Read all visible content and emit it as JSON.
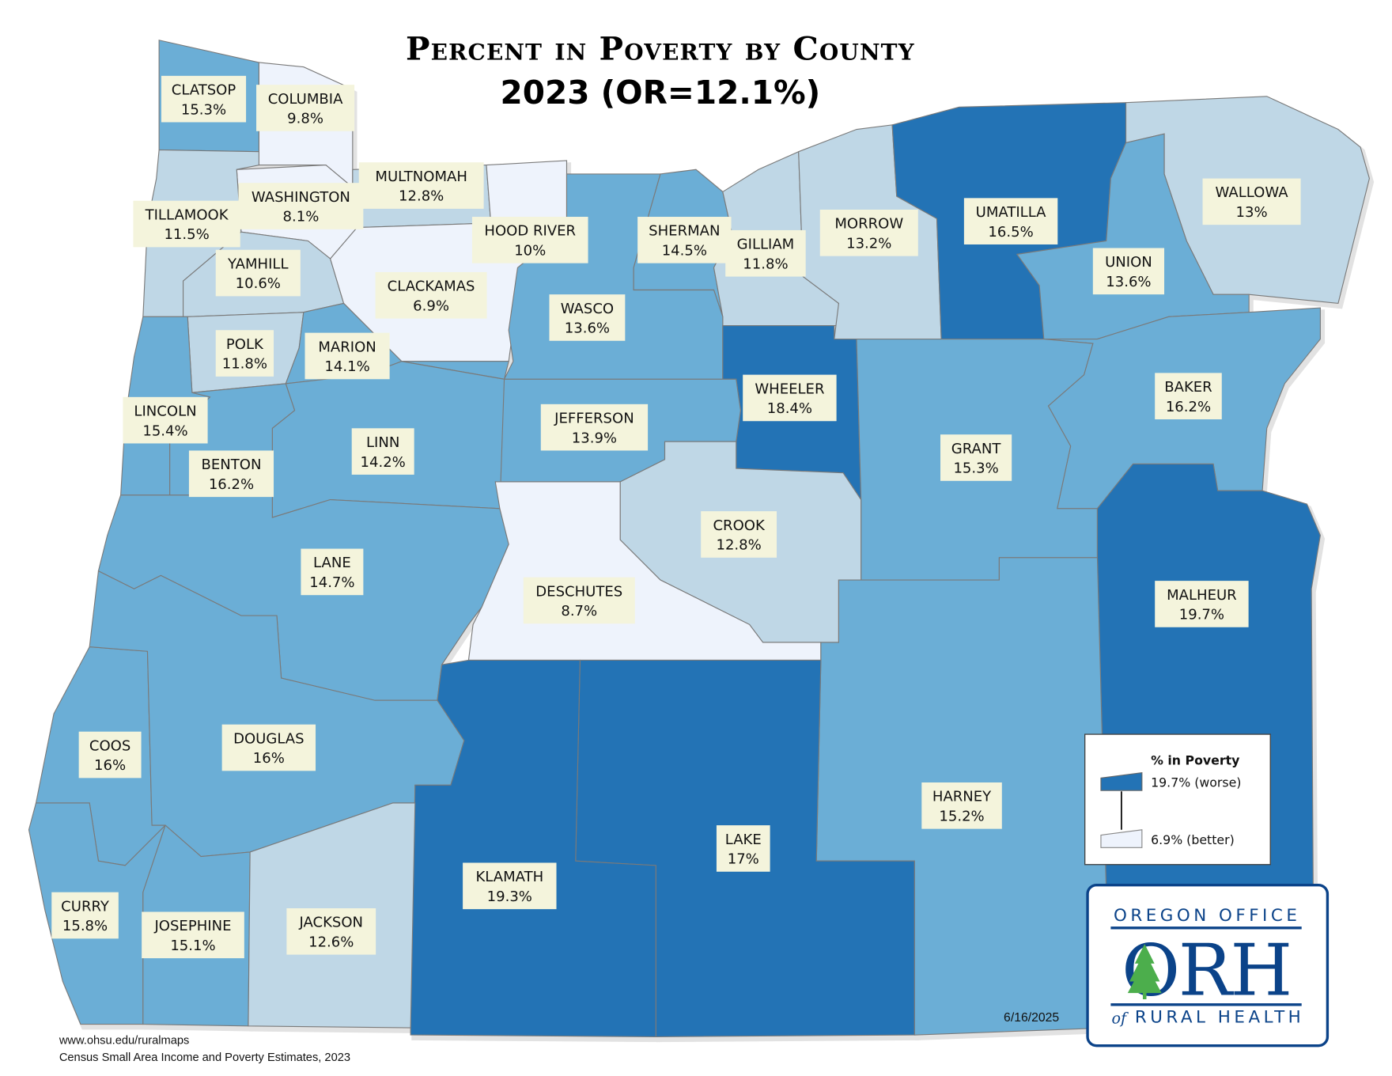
{
  "title_line1": "Percent in Poverty by County",
  "title_line2": "2023 (OR=12.1%)",
  "colors": {
    "darkest": "#2373b5",
    "mid": "#6baed6",
    "light": "#bfd7e6",
    "lightest": "#eef3fc",
    "label_bg": "#f4f4dc",
    "logo_blue": "#0b4389",
    "logo_tree": "#4cae4c"
  },
  "counties": [
    {
      "name": "CLATSOP",
      "value": "15.3%"
    },
    {
      "name": "COLUMBIA",
      "value": "9.8%"
    },
    {
      "name": "MULTNOMAH",
      "value": "12.8%"
    },
    {
      "name": "WASHINGTON",
      "value": "8.1%"
    },
    {
      "name": "TILLAMOOK",
      "value": "11.5%"
    },
    {
      "name": "HOOD RIVER",
      "value": "10%"
    },
    {
      "name": "YAMHILL",
      "value": "10.6%"
    },
    {
      "name": "CLACKAMAS",
      "value": "6.9%"
    },
    {
      "name": "SHERMAN",
      "value": "14.5%"
    },
    {
      "name": "GILLIAM",
      "value": "11.8%"
    },
    {
      "name": "MORROW",
      "value": "13.2%"
    },
    {
      "name": "UMATILLA",
      "value": "16.5%"
    },
    {
      "name": "WALLOWA",
      "value": "13%"
    },
    {
      "name": "UNION",
      "value": "13.6%"
    },
    {
      "name": "WASCO",
      "value": "13.6%"
    },
    {
      "name": "POLK",
      "value": "11.8%"
    },
    {
      "name": "MARION",
      "value": "14.1%"
    },
    {
      "name": "LINCOLN",
      "value": "15.4%"
    },
    {
      "name": "WHEELER",
      "value": "18.4%"
    },
    {
      "name": "BAKER",
      "value": "16.2%"
    },
    {
      "name": "JEFFERSON",
      "value": "13.9%"
    },
    {
      "name": "LINN",
      "value": "14.2%"
    },
    {
      "name": "BENTON",
      "value": "16.2%"
    },
    {
      "name": "GRANT",
      "value": "15.3%"
    },
    {
      "name": "CROOK",
      "value": "12.8%"
    },
    {
      "name": "LANE",
      "value": "14.7%"
    },
    {
      "name": "DESCHUTES",
      "value": "8.7%"
    },
    {
      "name": "MALHEUR",
      "value": "19.7%"
    },
    {
      "name": "COOS",
      "value": "16%"
    },
    {
      "name": "DOUGLAS",
      "value": "16%"
    },
    {
      "name": "HARNEY",
      "value": "15.2%"
    },
    {
      "name": "LAKE",
      "value": "17%"
    },
    {
      "name": "KLAMATH",
      "value": "19.3%"
    },
    {
      "name": "CURRY",
      "value": "15.8%"
    },
    {
      "name": "JOSEPHINE",
      "value": "15.1%"
    },
    {
      "name": "JACKSON",
      "value": "12.6%"
    }
  ],
  "legend": {
    "title": "% in Poverty",
    "max_label": "19.7% (worse)",
    "min_label": "6.9% (better)",
    "max": 19.7,
    "min": 6.9
  },
  "date": "6/16/2025",
  "logo": {
    "line1": "OREGON OFFICE",
    "mark": "ORH",
    "line2_of": "of",
    "line2": "RURAL HEALTH"
  },
  "footer": {
    "url": "www.ohsu.edu/ruralmaps",
    "source": "Census Small Area Income and Poverty Estimates, 2023"
  }
}
